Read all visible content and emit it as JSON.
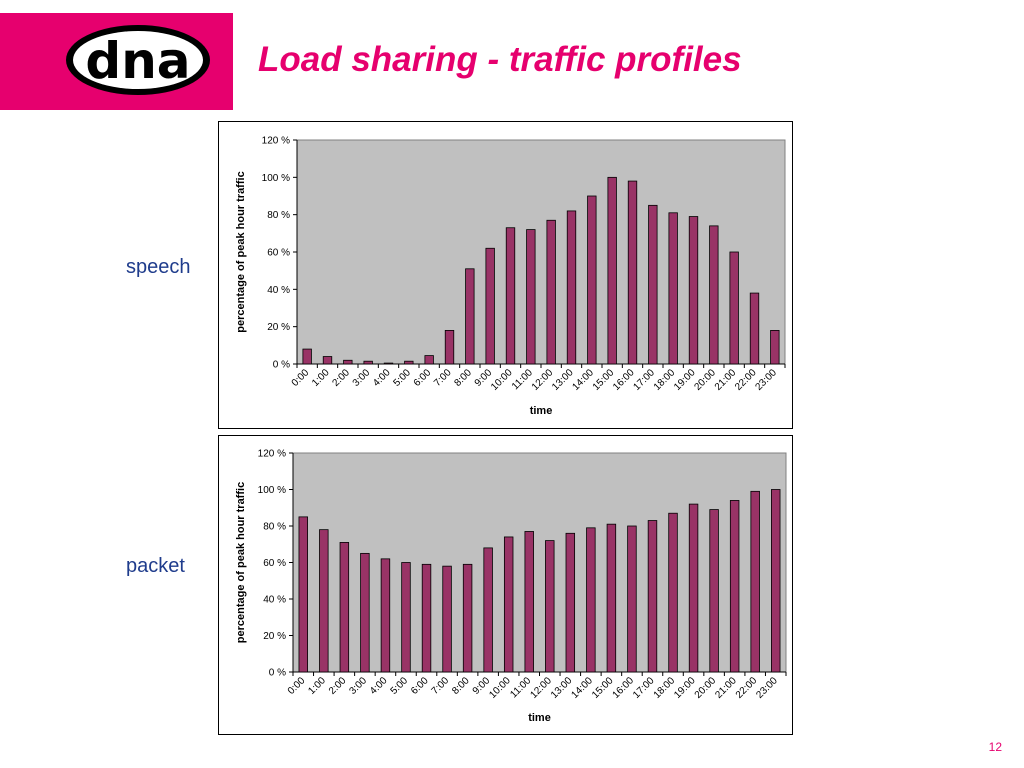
{
  "slide": {
    "title": "Load sharing - traffic profiles",
    "page_number": "12",
    "brand_color": "#e6006e",
    "label_color": "#1f3c8c",
    "bar_color": "#993366",
    "plot_bg": "#c0c0c0"
  },
  "logo": {
    "text": "dna"
  },
  "charts": [
    {
      "side_label": "speech"
    },
    {
      "side_label": "packet"
    }
  ],
  "chart_data": [
    {
      "type": "bar",
      "categories": [
        "0:00",
        "1:00",
        "2:00",
        "3:00",
        "4:00",
        "5:00",
        "6:00",
        "7:00",
        "8:00",
        "9:00",
        "10:00",
        "11:00",
        "12:00",
        "13:00",
        "14:00",
        "15:00",
        "16:00",
        "17:00",
        "18:00",
        "19:00",
        "20:00",
        "21:00",
        "22:00",
        "23:00"
      ],
      "values": [
        8,
        4,
        2,
        1.5,
        0.5,
        1.5,
        4.5,
        18,
        51,
        62,
        73,
        72,
        77,
        82,
        90,
        100,
        98,
        85,
        81,
        79,
        74,
        60,
        38,
        18
      ],
      "xlabel": "time",
      "ylabel": "percentage of peak hour traffic",
      "ylim": [
        0,
        120
      ],
      "yticks": [
        "0 %",
        "20 %",
        "40 %",
        "60 %",
        "80 %",
        "100 %",
        "120 %"
      ],
      "grid": false,
      "legend": "none"
    },
    {
      "type": "bar",
      "categories": [
        "0:00",
        "1:00",
        "2:00",
        "3:00",
        "4:00",
        "5:00",
        "6:00",
        "7:00",
        "8:00",
        "9:00",
        "10:00",
        "11:00",
        "12:00",
        "13:00",
        "14:00",
        "15:00",
        "16:00",
        "17:00",
        "18:00",
        "19:00",
        "20:00",
        "21:00",
        "22:00",
        "23:00"
      ],
      "values": [
        85,
        78,
        71,
        65,
        62,
        60,
        59,
        58,
        59,
        68,
        74,
        77,
        72,
        76,
        79,
        81,
        80,
        83,
        87,
        92,
        89,
        94,
        99,
        100
      ],
      "xlabel": "time",
      "ylabel": "percentage of peak hour traffic",
      "ylim": [
        0,
        120
      ],
      "yticks": [
        "0 %",
        "20 %",
        "40 %",
        "60 %",
        "80 %",
        "100 %",
        "120 %"
      ],
      "grid": false,
      "legend": "none"
    }
  ]
}
